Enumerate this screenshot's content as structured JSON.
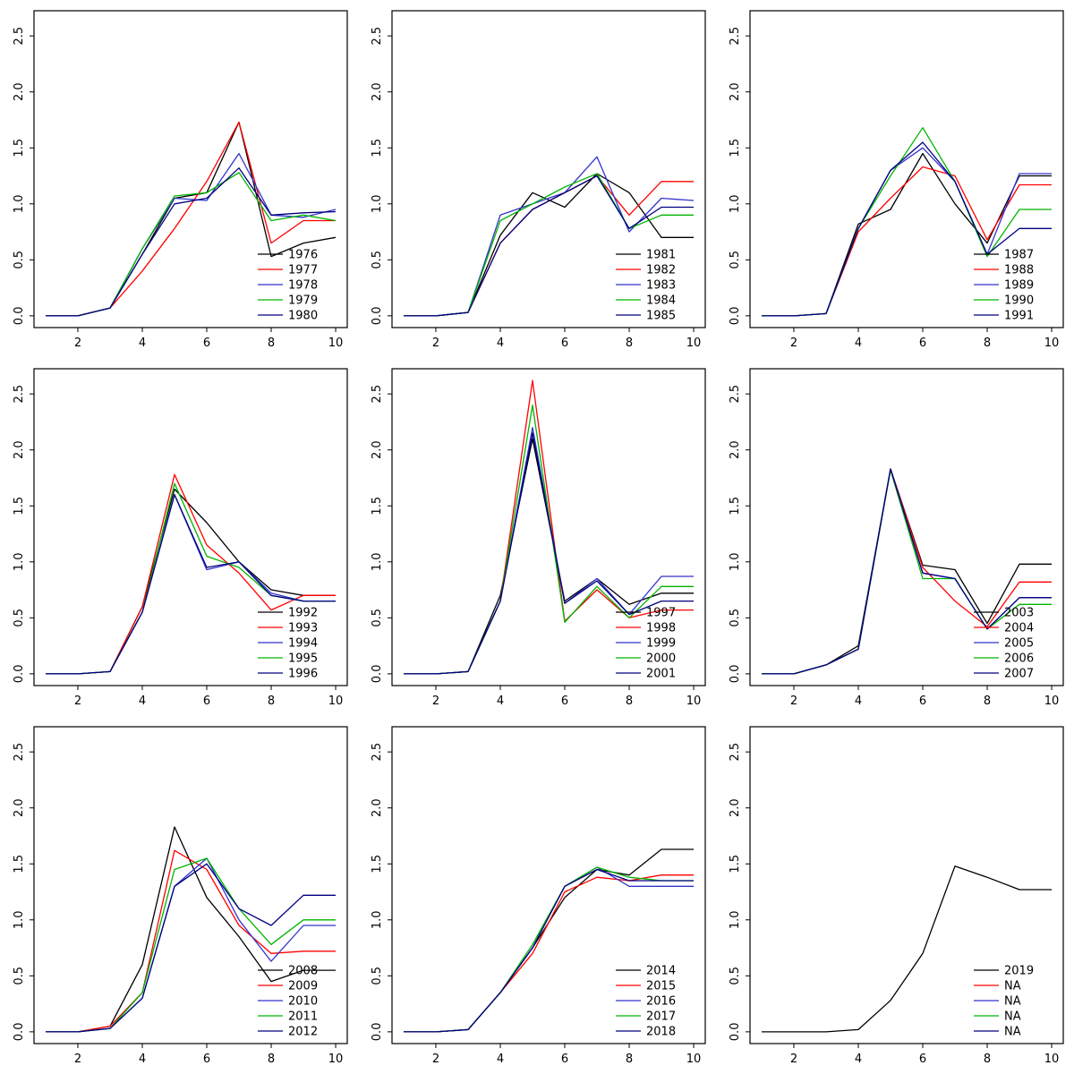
{
  "chart_data": {
    "type": "line",
    "title": "",
    "xlabel": "",
    "ylabel": "",
    "grid": false,
    "legend_position": "bottom-right-inside",
    "x": [
      1,
      2,
      3,
      4,
      5,
      6,
      7,
      8,
      9,
      10
    ],
    "xticks": [
      2,
      4,
      6,
      8,
      10
    ],
    "xticklabels": [
      "2",
      "4",
      "6",
      "8",
      "10"
    ],
    "yticks": [
      0.0,
      0.5,
      1.0,
      1.5,
      2.0,
      2.5
    ],
    "yticklabels": [
      "0.0",
      "0.5",
      "1.0",
      "1.5",
      "2.0",
      "2.5"
    ],
    "xlim": [
      0.64,
      10.36
    ],
    "ylim": [
      -0.105,
      2.725
    ],
    "palette": [
      "#000000",
      "#ff0000",
      "#3333cc",
      "#00b400",
      "#000080"
    ],
    "panels": [
      {
        "legend": [
          "1976",
          "1977",
          "1978",
          "1979",
          "1980"
        ],
        "series": [
          [
            0,
            0,
            0.07,
            0.55,
            1.05,
            1.1,
            1.73,
            0.53,
            0.65,
            0.7
          ],
          [
            0,
            0,
            0.07,
            0.4,
            0.78,
            1.2,
            1.73,
            0.65,
            0.85,
            0.85
          ],
          [
            0,
            0,
            0.07,
            0.6,
            1.05,
            1.03,
            1.45,
            0.9,
            0.88,
            0.95
          ],
          [
            0,
            0,
            0.07,
            0.6,
            1.07,
            1.1,
            1.28,
            0.85,
            0.9,
            0.85
          ],
          [
            0,
            0,
            0.07,
            0.55,
            1.0,
            1.05,
            1.32,
            0.9,
            0.92,
            0.93
          ]
        ]
      },
      {
        "legend": [
          "1981",
          "1982",
          "1983",
          "1984",
          "1985"
        ],
        "series": [
          [
            0,
            0,
            0.03,
            0.72,
            1.1,
            0.97,
            1.27,
            1.1,
            0.7,
            0.7
          ],
          [
            0,
            0,
            0.03,
            0.65,
            0.95,
            1.1,
            1.25,
            0.9,
            1.2,
            1.2
          ],
          [
            0,
            0,
            0.03,
            0.9,
            1.0,
            1.1,
            1.42,
            0.75,
            1.05,
            1.03
          ],
          [
            0,
            0,
            0.03,
            0.85,
            1.0,
            1.15,
            1.27,
            0.78,
            0.9,
            0.9
          ],
          [
            0,
            0,
            0.03,
            0.65,
            0.95,
            1.1,
            1.25,
            0.78,
            0.97,
            0.97
          ]
        ]
      },
      {
        "legend": [
          "1987",
          "1988",
          "1989",
          "1990",
          "1991"
        ],
        "series": [
          [
            0,
            0,
            0.02,
            0.82,
            0.95,
            1.45,
            1.0,
            0.65,
            1.25,
            1.25
          ],
          [
            0,
            0,
            0.02,
            0.75,
            1.05,
            1.33,
            1.25,
            0.68,
            1.17,
            1.17
          ],
          [
            0,
            0,
            0.02,
            0.78,
            1.3,
            1.5,
            1.2,
            0.55,
            1.27,
            1.27
          ],
          [
            0,
            0,
            0.02,
            0.78,
            1.25,
            1.68,
            1.2,
            0.53,
            0.95,
            0.95
          ],
          [
            0,
            0,
            0.02,
            0.78,
            1.3,
            1.55,
            1.2,
            0.55,
            0.78,
            0.78
          ]
        ]
      },
      {
        "legend": [
          "1992",
          "1993",
          "1994",
          "1995",
          "1996"
        ],
        "series": [
          [
            0,
            0,
            0.02,
            0.6,
            1.65,
            1.35,
            1.0,
            0.75,
            0.7,
            0.7
          ],
          [
            0,
            0,
            0.02,
            0.6,
            1.78,
            1.15,
            0.9,
            0.57,
            0.7,
            0.7
          ],
          [
            0,
            0,
            0.02,
            0.55,
            1.6,
            0.93,
            1.0,
            0.72,
            0.65,
            0.65
          ],
          [
            0,
            0,
            0.02,
            0.55,
            1.7,
            1.05,
            0.95,
            0.7,
            0.65,
            0.65
          ],
          [
            0,
            0,
            0.02,
            0.55,
            1.6,
            0.95,
            1.0,
            0.7,
            0.65,
            0.65
          ]
        ]
      },
      {
        "legend": [
          "1997",
          "1998",
          "1999",
          "2000",
          "2001"
        ],
        "series": [
          [
            0,
            0,
            0.02,
            0.7,
            2.1,
            0.65,
            0.85,
            0.62,
            0.72,
            0.72
          ],
          [
            0,
            0,
            0.02,
            0.65,
            2.62,
            0.47,
            0.75,
            0.5,
            0.57,
            0.57
          ],
          [
            0,
            0,
            0.02,
            0.65,
            2.2,
            0.63,
            0.85,
            0.53,
            0.87,
            0.87
          ],
          [
            0,
            0,
            0.02,
            0.65,
            2.4,
            0.46,
            0.78,
            0.5,
            0.78,
            0.78
          ],
          [
            0,
            0,
            0.02,
            0.65,
            2.15,
            0.63,
            0.83,
            0.53,
            0.65,
            0.65
          ]
        ]
      },
      {
        "legend": [
          "2003",
          "2004",
          "2005",
          "2006",
          "2007"
        ],
        "series": [
          [
            0,
            0,
            0.08,
            0.25,
            1.83,
            0.97,
            0.93,
            0.45,
            0.98,
            0.98
          ],
          [
            0,
            0,
            0.08,
            0.22,
            1.83,
            0.95,
            0.65,
            0.42,
            0.82,
            0.82
          ],
          [
            0,
            0,
            0.08,
            0.22,
            1.83,
            0.9,
            0.85,
            0.4,
            0.68,
            0.68
          ],
          [
            0,
            0,
            0.08,
            0.22,
            1.82,
            0.85,
            0.85,
            0.4,
            0.62,
            0.62
          ],
          [
            0,
            0,
            0.08,
            0.22,
            1.83,
            0.9,
            0.85,
            0.4,
            0.68,
            0.68
          ]
        ]
      },
      {
        "legend": [
          "2008",
          "2009",
          "2010",
          "2011",
          "2012"
        ],
        "series": [
          [
            0,
            0,
            0.05,
            0.6,
            1.83,
            1.2,
            0.85,
            0.45,
            0.55,
            0.55
          ],
          [
            0,
            0,
            0.05,
            0.35,
            1.62,
            1.45,
            0.95,
            0.7,
            0.72,
            0.72
          ],
          [
            0,
            0,
            0.03,
            0.3,
            1.3,
            1.55,
            1.0,
            0.63,
            0.95,
            0.95
          ],
          [
            0,
            0,
            0.03,
            0.35,
            1.45,
            1.55,
            1.1,
            0.78,
            1.0,
            1.0
          ],
          [
            0,
            0,
            0.03,
            0.3,
            1.3,
            1.5,
            1.1,
            0.95,
            1.22,
            1.22
          ]
        ]
      },
      {
        "legend": [
          "2014",
          "2015",
          "2016",
          "2017",
          "2018"
        ],
        "series": [
          [
            0,
            0,
            0.02,
            0.35,
            0.75,
            1.2,
            1.45,
            1.4,
            1.63,
            1.63
          ],
          [
            0,
            0,
            0.02,
            0.35,
            0.7,
            1.25,
            1.38,
            1.35,
            1.4,
            1.4
          ],
          [
            0,
            0,
            0.02,
            0.35,
            0.75,
            1.3,
            1.47,
            1.3,
            1.3,
            1.3
          ],
          [
            0,
            0,
            0.02,
            0.35,
            0.78,
            1.3,
            1.47,
            1.38,
            1.35,
            1.35
          ],
          [
            0,
            0,
            0.02,
            0.35,
            0.75,
            1.3,
            1.45,
            1.35,
            1.35,
            1.35
          ]
        ]
      },
      {
        "legend": [
          "2019",
          "NA",
          "NA",
          "NA",
          "NA"
        ],
        "series": [
          [
            0,
            0,
            0,
            0.02,
            0.28,
            0.7,
            1.48,
            1.38,
            1.27,
            1.27
          ]
        ]
      }
    ]
  }
}
